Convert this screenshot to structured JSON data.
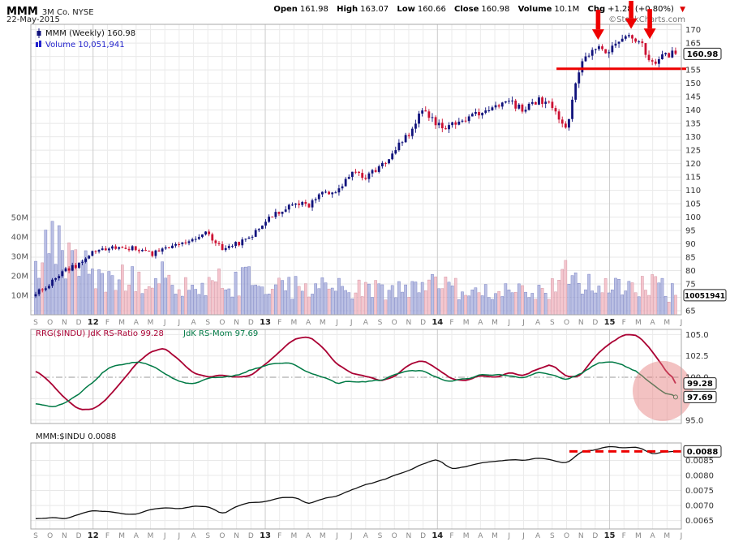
{
  "header": {
    "symbol": "MMM",
    "company": "3M Co. NYSE",
    "date": "22-May-2015",
    "quote": {
      "open_label": "Open",
      "open": "161.98",
      "high_label": "High",
      "high": "163.07",
      "low_label": "Low",
      "low": "160.66",
      "close_label": "Close",
      "close": "160.98",
      "volume_label": "Volume",
      "volume": "10.1M",
      "chg_label": "Chg",
      "chg": "+1.28 (+0.80%)"
    },
    "copyright": "©StockCharts.com"
  },
  "legends": {
    "p1_main": "MMM (Weekly) 160.98",
    "p1_volume": "Volume 10,051,941",
    "p2_ratio": "RRG($INDU) JdK RS-Ratio 99.28",
    "p2_mom": "JdK RS-Mom 97.69",
    "p3": "MMM:$INDU 0.0088"
  },
  "value_boxes": {
    "price": "160.98",
    "volume": "10051941",
    "rs_ratio": "99.28",
    "rs_mom": "97.69",
    "ratio": "0.0088"
  },
  "colors": {
    "up": "#10127c",
    "down": "#cc1133",
    "vol_up": "#aab0dd",
    "vol_down": "#f2b8c2",
    "rs_ratio": "#aa0033",
    "rs_mom": "#007a45",
    "volume_legend": "#2222cc",
    "ratio_line": "#111111",
    "annotation": "#ee0000",
    "highlight": "rgba(228,120,120,0.45)"
  },
  "chart_data": [
    {
      "type": "candlestick",
      "title": "MMM (Weekly)",
      "last_close": 160.98,
      "ylim": [
        63.5,
        172
      ],
      "yticks": [
        65,
        70,
        75,
        80,
        85,
        90,
        95,
        100,
        105,
        110,
        115,
        120,
        125,
        130,
        135,
        140,
        145,
        150,
        155,
        160,
        165,
        170
      ],
      "x_ticklabels": [
        "S",
        "O",
        "N",
        "D",
        "12",
        "F",
        "M",
        "A",
        "M",
        "J",
        "J",
        "A",
        "S",
        "O",
        "N",
        "D",
        "13",
        "F",
        "M",
        "A",
        "M",
        "J",
        "J",
        "A",
        "S",
        "O",
        "N",
        "D",
        "14",
        "F",
        "M",
        "A",
        "M",
        "J",
        "J",
        "A",
        "S",
        "O",
        "N",
        "D",
        "15",
        "F",
        "M",
        "A",
        "M",
        "J"
      ],
      "year_tick_indices": [
        4,
        16,
        28,
        40
      ],
      "monthly_closes": [
        72,
        75,
        80,
        82,
        87,
        88,
        89,
        88,
        86,
        89,
        89,
        92,
        94,
        88,
        90,
        93,
        99,
        102,
        106,
        104,
        110,
        109,
        117,
        115,
        119,
        125,
        131,
        140,
        134,
        134,
        136,
        139,
        141,
        143,
        140,
        144,
        142,
        133,
        158,
        164,
        162,
        167,
        166,
        157,
        161,
        161
      ],
      "volume_monthly_M": [
        30,
        38,
        30,
        24,
        22,
        20,
        18,
        18,
        20,
        20,
        16,
        14,
        16,
        18,
        16,
        18,
        16,
        14,
        14,
        16,
        14,
        16,
        14,
        12,
        13,
        14,
        12,
        13,
        16,
        14,
        13,
        14,
        12,
        11,
        14,
        12,
        13,
        20,
        16,
        16,
        15,
        16,
        15,
        16,
        12,
        10
      ],
      "volume_yticks_M": [
        10,
        20,
        30,
        40,
        50
      ],
      "last_volume": 10051941,
      "annotations": {
        "support_price": 155.4,
        "support_from_month": 36.3,
        "arrows": [
          {
            "month": 39.2,
            "price": 166.2
          },
          {
            "month": 41.5,
            "price": 170.3
          },
          {
            "month": 42.8,
            "price": 166.5
          }
        ]
      }
    },
    {
      "type": "line",
      "title": "RRG($INDU)",
      "ylim": [
        94.6,
        105.6
      ],
      "yticks": [
        95,
        97.5,
        100,
        102.5,
        105
      ],
      "ytick_labels": [
        "95.0",
        "97.5",
        "100.0",
        "102.5",
        "105.0"
      ],
      "baseline": 100,
      "series": [
        {
          "name": "JdK RS-Ratio",
          "last": 99.28,
          "monthly": [
            100.8,
            99.5,
            97.5,
            96.3,
            96.2,
            97.5,
            99.5,
            101.5,
            103.0,
            103.5,
            102.0,
            100.5,
            100.0,
            100.3,
            100.0,
            100.2,
            101.5,
            103.0,
            104.5,
            104.8,
            103.5,
            101.5,
            100.5,
            100.2,
            99.6,
            100.0,
            101.5,
            102.0,
            101.0,
            99.8,
            99.6,
            100.2,
            100.0,
            100.5,
            100.2,
            101.0,
            101.5,
            100.0,
            100.2,
            102.5,
            104.0,
            105.0,
            104.8,
            103.0,
            100.5,
            99.28
          ]
        },
        {
          "name": "JdK RS-Mom",
          "last": 97.69,
          "monthly": [
            97.0,
            96.5,
            97.0,
            98.0,
            99.5,
            101.0,
            101.5,
            101.8,
            101.5,
            100.5,
            99.5,
            99.3,
            99.8,
            100.0,
            100.2,
            100.8,
            101.5,
            101.8,
            101.5,
            100.5,
            100.0,
            99.3,
            99.6,
            99.5,
            99.6,
            100.2,
            100.8,
            100.8,
            100.0,
            99.5,
            99.8,
            100.2,
            100.2,
            100.3,
            100.0,
            100.5,
            100.4,
            99.6,
            100.5,
            101.5,
            101.8,
            101.5,
            100.5,
            99.0,
            98.0,
            97.69
          ]
        }
      ],
      "highlight_circle": {
        "month": 43.7,
        "value": 98.4,
        "radius": 37
      }
    },
    {
      "type": "line",
      "title": "MMM:$INDU",
      "last": 0.0088,
      "ylim": [
        0.00622,
        0.00908
      ],
      "yticks": [
        0.0065,
        0.007,
        0.0075,
        0.008,
        0.0085
      ],
      "ytick_labels": [
        "0.0065",
        "0.0070",
        "0.0075",
        "0.0080",
        "0.0085"
      ],
      "level_line": {
        "value": 0.0088,
        "from_month": 37.2
      },
      "monthly": [
        0.00655,
        0.0066,
        0.00655,
        0.0067,
        0.00685,
        0.0068,
        0.00672,
        0.0067,
        0.00688,
        0.00692,
        0.00688,
        0.007,
        0.00698,
        0.00672,
        0.00698,
        0.0071,
        0.00712,
        0.00725,
        0.00728,
        0.00705,
        0.00722,
        0.00732,
        0.00752,
        0.0077,
        0.00782,
        0.008,
        0.00815,
        0.0084,
        0.00855,
        0.0082,
        0.0083,
        0.0084,
        0.00848,
        0.00852,
        0.0085,
        0.00858,
        0.00852,
        0.0084,
        0.0088,
        0.00885,
        0.00895,
        0.0089,
        0.00895,
        0.0087,
        0.0088,
        0.0088
      ]
    }
  ]
}
